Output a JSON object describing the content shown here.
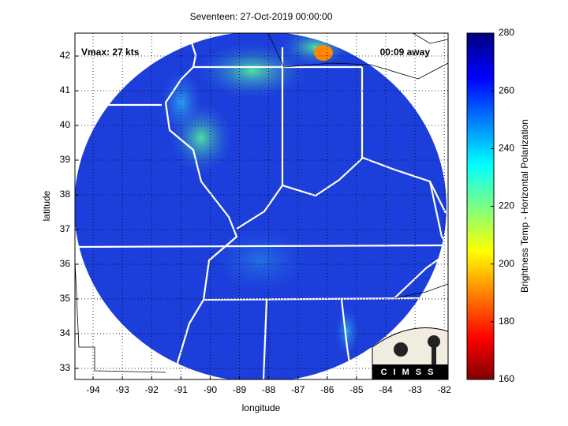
{
  "chart_data": {
    "type": "map",
    "title": "Seventeen: 27-Oct-2019 00:00:00",
    "annotations": [
      "Vmax: 27 kts",
      "00:09 away"
    ],
    "x_label": "longitude",
    "y_label": "latitude",
    "xlim": [
      -94.62,
      -81.87
    ],
    "ylim": [
      32.68,
      42.66
    ],
    "xticks": [
      -94,
      -93,
      -92,
      -91,
      -90,
      -89,
      -88,
      -87,
      -86,
      -85,
      -84,
      -83,
      -82
    ],
    "yticks": [
      33,
      34,
      35,
      36,
      37,
      38,
      39,
      40,
      41,
      42
    ],
    "grid": true,
    "colorbar": {
      "label": "Brightness Temp - Horizontal Polarization",
      "clim": [
        160,
        280
      ],
      "ticks": [
        160,
        180,
        200,
        220,
        240,
        260,
        280
      ]
    },
    "logo": "CIMSS"
  }
}
